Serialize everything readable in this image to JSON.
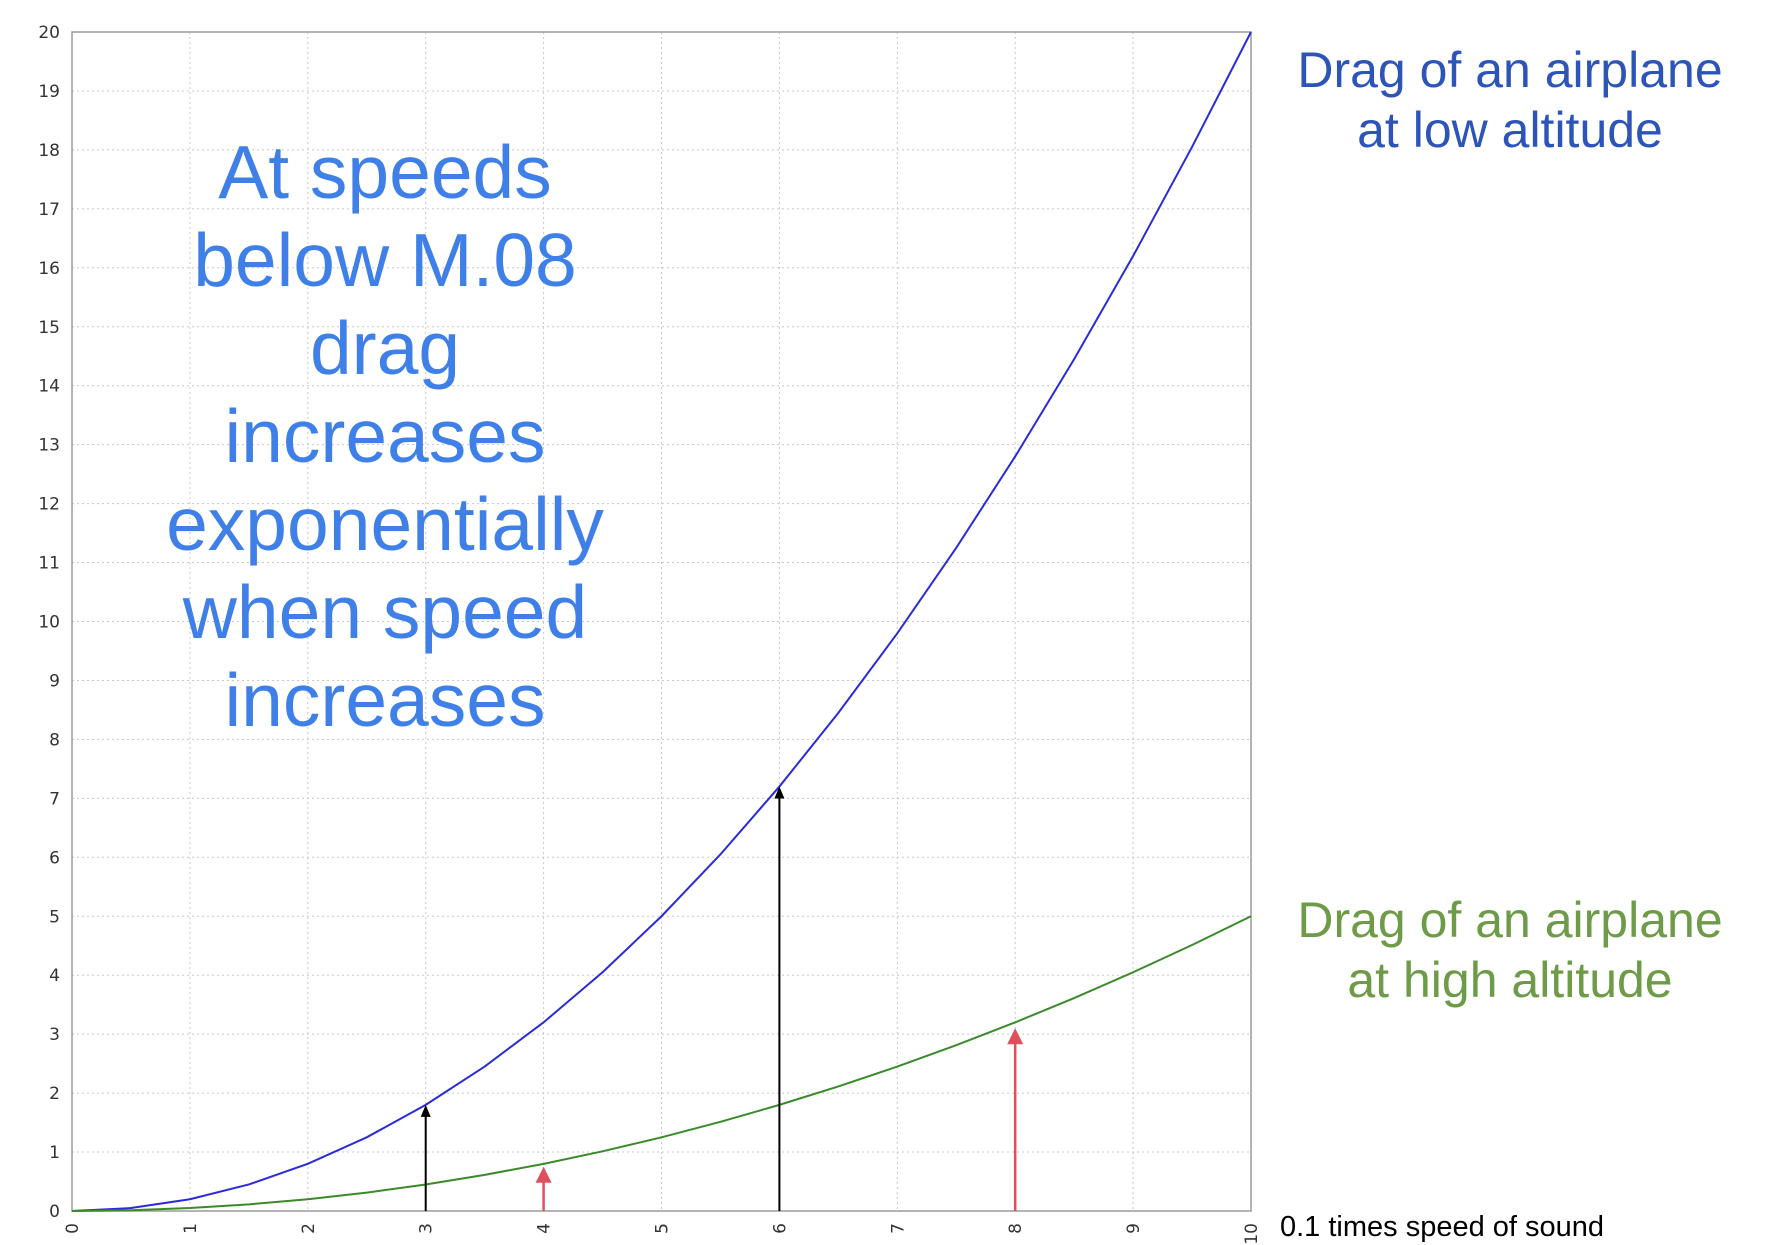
{
  "chart_data": {
    "type": "line",
    "xlim": [
      0,
      10
    ],
    "ylim": [
      0,
      20
    ],
    "x_ticks": [
      "0",
      "1",
      "2",
      "3",
      "4",
      "5",
      "6",
      "7",
      "8",
      "9",
      "10"
    ],
    "y_ticks": [
      "0",
      "1",
      "2",
      "3",
      "4",
      "5",
      "6",
      "7",
      "8",
      "9",
      "10",
      "11",
      "12",
      "13",
      "14",
      "15",
      "16",
      "17",
      "18",
      "19",
      "20"
    ],
    "xlabel": "0.1 times speed of sound",
    "ylabel": "",
    "grid": true,
    "series": [
      {
        "name": "Drag of an airplane at low altitude",
        "name_lines": [
          "Drag of an airplane",
          "at low altitude"
        ],
        "color": "#2b2bd6",
        "label_color": "#2d55b8",
        "x": [
          0,
          0.5,
          1,
          1.5,
          2,
          2.5,
          3,
          3.5,
          4,
          4.5,
          5,
          5.5,
          6,
          6.5,
          7,
          7.5,
          8,
          8.5,
          9,
          9.5,
          10
        ],
        "y": [
          0,
          0.05,
          0.2,
          0.45,
          0.8,
          1.25,
          1.8,
          2.45,
          3.2,
          4.05,
          5.0,
          6.05,
          7.2,
          8.45,
          9.8,
          11.25,
          12.8,
          14.45,
          16.2,
          18.05,
          20.0
        ]
      },
      {
        "name": "Drag of an airplane at high altitude",
        "name_lines": [
          "Drag of an airplane",
          "at high altitude"
        ],
        "color": "#3a8a2a",
        "label_color": "#6e9b48",
        "x": [
          0,
          0.5,
          1,
          1.5,
          2,
          2.5,
          3,
          3.5,
          4,
          4.5,
          5,
          5.5,
          6,
          6.5,
          7,
          7.5,
          8,
          8.5,
          9,
          9.5,
          10
        ],
        "y": [
          0,
          0.0125,
          0.05,
          0.1125,
          0.2,
          0.3125,
          0.45,
          0.6125,
          0.8,
          1.0125,
          1.25,
          1.5125,
          1.8,
          2.1125,
          2.45,
          2.8125,
          3.2,
          3.6125,
          4.05,
          4.5125,
          5.0
        ]
      }
    ],
    "arrows": [
      {
        "x": 3,
        "y_to": 1.8,
        "color": "#000000"
      },
      {
        "x": 4,
        "y_to": 0.75,
        "color": "#e0505a"
      },
      {
        "x": 6,
        "y_to": 7.2,
        "color": "#000000"
      },
      {
        "x": 8,
        "y_to": 3.1,
        "color": "#e0505a"
      }
    ],
    "annotation": {
      "lines": [
        "At speeds",
        "below M.08",
        "drag",
        "increases",
        "exponentially",
        "when speed",
        "increases"
      ],
      "color": "#3f7fe8"
    }
  }
}
